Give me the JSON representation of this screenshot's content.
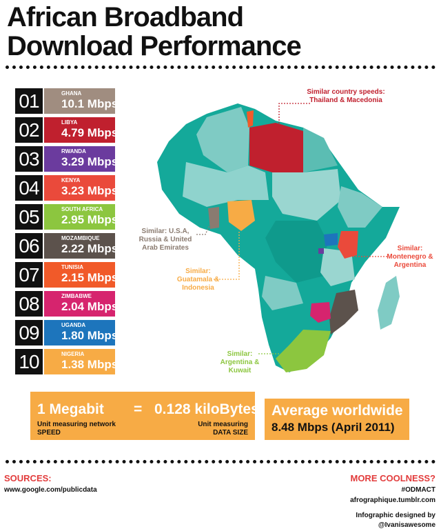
{
  "title_line1": "African Broadband",
  "title_line2": "Download Performance",
  "chart_data": {
    "type": "bar",
    "categories": [
      "GHANA",
      "LIBYA",
      "RWANDA",
      "KENYA",
      "SOUTH AFRICA",
      "MOZAMBIQUE",
      "TUNISIA",
      "ZIMBABWE",
      "UGANDA",
      "NIGERIA"
    ],
    "values": [
      10.1,
      4.79,
      3.29,
      3.23,
      2.95,
      2.22,
      2.15,
      2.04,
      1.8,
      1.38
    ],
    "unit": "Mbps",
    "ranks": [
      "01",
      "02",
      "03",
      "04",
      "05",
      "06",
      "07",
      "08",
      "09",
      "10"
    ],
    "labels": [
      "10.1 Mbps",
      "4.79 Mbps",
      "3.29 Mbps",
      "3.23 Mbps",
      "2.95 Mbps",
      "2.22 Mbps",
      "2.15 Mbps",
      "2.04 Mbps",
      "1.80 Mbps",
      "1.38 Mbps"
    ],
    "colors": [
      "#a08d80",
      "#c0202e",
      "#6b3b9e",
      "#ea4a3b",
      "#8cc63f",
      "#5c524c",
      "#f15a29",
      "#d6246e",
      "#1d75bc",
      "#f7ab45"
    ]
  },
  "annotations": {
    "libya": "Similar country speeds: Thailand & Macedonia",
    "ghana": "Similar: U.S.A, Russia & United Arab Emirates",
    "nigeria": "Similar: Guatamala & Indonesia",
    "kenya": "Similar: Montenegro & Argentina",
    "south_africa": "Similar: Argentina & Kuwait"
  },
  "conversion": {
    "left_value": "1 Megabit",
    "equals": "=",
    "right_value": "0.128 kiloBytes",
    "left_caption1": "Unit measuring network",
    "left_caption2": "SPEED",
    "right_caption1": "Unit measuring",
    "right_caption2": "DATA SIZE"
  },
  "average": {
    "label": "Average worldwide",
    "value": "8.48 Mbps (April 2011)"
  },
  "footer": {
    "sources_label": "SOURCES:",
    "sources_url": "www.google.com/publicdata",
    "more_label": "MORE COOLNESS?",
    "tag": "#ODMACT",
    "site": "afrographique.tumblr.com",
    "credit1": "Infographic designed by",
    "credit2": "@Ivanisawesome"
  }
}
